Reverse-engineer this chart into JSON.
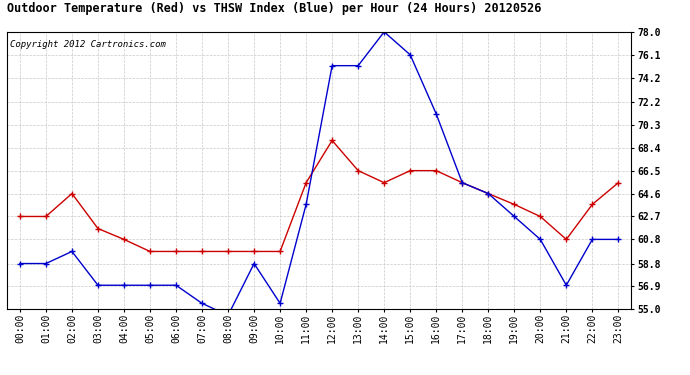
{
  "title": "Outdoor Temperature (Red) vs THSW Index (Blue) per Hour (24 Hours) 20120526",
  "copyright": "Copyright 2012 Cartronics.com",
  "hours": [
    "00:00",
    "01:00",
    "02:00",
    "03:00",
    "04:00",
    "05:00",
    "06:00",
    "07:00",
    "08:00",
    "09:00",
    "10:00",
    "11:00",
    "12:00",
    "13:00",
    "14:00",
    "15:00",
    "16:00",
    "17:00",
    "18:00",
    "19:00",
    "20:00",
    "21:00",
    "22:00",
    "23:00"
  ],
  "red_temp": [
    62.7,
    62.7,
    64.6,
    61.7,
    60.8,
    59.8,
    59.8,
    59.8,
    59.8,
    59.8,
    59.8,
    65.5,
    69.0,
    66.5,
    65.5,
    66.5,
    66.5,
    65.5,
    64.6,
    63.7,
    62.7,
    60.8,
    63.7,
    65.5
  ],
  "blue_thsw": [
    58.8,
    58.8,
    59.8,
    57.0,
    57.0,
    57.0,
    57.0,
    55.5,
    54.5,
    58.8,
    55.5,
    63.7,
    75.2,
    75.2,
    78.0,
    76.1,
    71.2,
    65.5,
    64.6,
    62.7,
    60.8,
    57.0,
    60.8,
    60.8
  ],
  "ylim": [
    55.0,
    78.0
  ],
  "yticks": [
    55.0,
    56.9,
    58.8,
    60.8,
    62.7,
    64.6,
    66.5,
    68.4,
    70.3,
    72.2,
    74.2,
    76.1,
    78.0
  ],
  "bg_color": "#ffffff",
  "plot_bg_color": "#ffffff",
  "grid_color": "#bbbbbb",
  "red_color": "#cc0000",
  "blue_color": "#0000cc",
  "title_fontsize": 8.5,
  "tick_fontsize": 7,
  "copyright_fontsize": 6.5
}
